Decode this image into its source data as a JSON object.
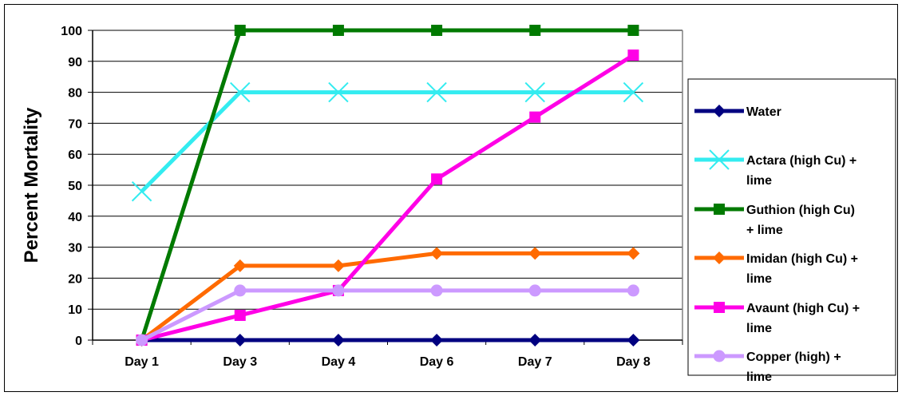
{
  "chart_data": {
    "type": "line",
    "title": "",
    "xlabel": "",
    "ylabel": "Percent Mortality",
    "categories": [
      "Day 1",
      "Day 3",
      "Day 4",
      "Day 6",
      "Day 7",
      "Day 8"
    ],
    "ylim": [
      0,
      100
    ],
    "yticks": [
      0,
      10,
      20,
      30,
      40,
      50,
      60,
      70,
      80,
      90,
      100
    ],
    "grid": true,
    "legend_position": "right",
    "series": [
      {
        "name": "Water",
        "color": "#000080",
        "marker": "diamond",
        "values": [
          0,
          0,
          0,
          0,
          0,
          0
        ]
      },
      {
        "name": "Actara (high Cu) + lime",
        "legend_lines": [
          "Actara (high Cu) +",
          "lime"
        ],
        "color": "#33ECF0",
        "marker": "x",
        "values": [
          48,
          80,
          80,
          80,
          80,
          80
        ]
      },
      {
        "name": "Guthion (high Cu) + lime",
        "legend_lines": [
          "Guthion (high Cu)",
          "+ lime"
        ],
        "color": "#007A00",
        "marker": "square",
        "values": [
          0,
          100,
          100,
          100,
          100,
          100
        ]
      },
      {
        "name": "Imidan (high Cu) + lime",
        "legend_lines": [
          "Imidan (high Cu) +",
          "lime"
        ],
        "color": "#FF6A00",
        "marker": "diamond",
        "values": [
          0,
          24,
          24,
          28,
          28,
          28
        ]
      },
      {
        "name": "Avaunt (high Cu) + lime",
        "legend_lines": [
          "Avaunt (high Cu) +",
          "lime"
        ],
        "color": "#FF00E6",
        "marker": "square",
        "values": [
          0,
          8,
          16,
          52,
          72,
          92
        ]
      },
      {
        "name": "Copper (high) + lime",
        "legend_lines": [
          "Copper (high) +",
          "lime"
        ],
        "color": "#CC99FF",
        "marker": "circle",
        "values": [
          0,
          16,
          16,
          16,
          16,
          16
        ]
      }
    ]
  }
}
